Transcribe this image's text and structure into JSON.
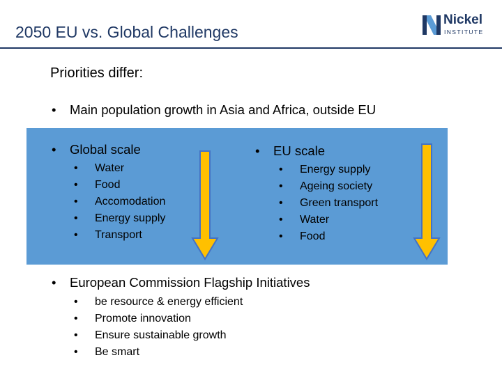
{
  "slide": {
    "title": "2050 EU vs. Global Challenges",
    "logo": {
      "word": "Nickel",
      "sub": "INSTITUTE"
    },
    "heading": "Priorities differ:",
    "bullet_1": "Main population growth in Asia and Africa, outside EU",
    "global": {
      "heading": "Global scale",
      "items": [
        "Water",
        "Food",
        "Accomodation",
        "Energy supply",
        "Transport"
      ]
    },
    "eu": {
      "heading": "EU scale",
      "items": [
        "Energy supply",
        "Ageing society",
        "Green transport",
        "Water",
        "Food"
      ]
    },
    "initiatives": {
      "heading": "European Commission Flagship Initiatives",
      "items": [
        "be resource & energy efficient",
        "Promote innovation",
        "Ensure sustainable growth",
        "Be smart"
      ]
    },
    "bullet_glyph": "•"
  },
  "colors": {
    "title": "#1f3864",
    "panel": "#5b9bd5",
    "arrow_fill": "#ffc000",
    "arrow_stroke": "#4472c4"
  }
}
